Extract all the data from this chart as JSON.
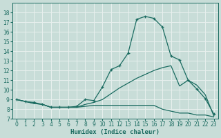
{
  "xlabel": "Humidex (Indice chaleur)",
  "xlim": [
    -0.5,
    23.5
  ],
  "ylim": [
    7,
    19
  ],
  "yticks": [
    7,
    8,
    9,
    10,
    11,
    12,
    13,
    14,
    15,
    16,
    17,
    18
  ],
  "xticks": [
    0,
    1,
    2,
    3,
    4,
    5,
    6,
    7,
    8,
    9,
    10,
    11,
    12,
    13,
    14,
    15,
    16,
    17,
    18,
    19,
    20,
    21,
    22,
    23
  ],
  "bg_color": "#c8ddd8",
  "grid_color": "#e8f0ee",
  "line_color": "#1a6b60",
  "line1_x": [
    0,
    1,
    2,
    3,
    4,
    5,
    6,
    7,
    8,
    9,
    10,
    11,
    12,
    13,
    14,
    15,
    16,
    17,
    18,
    19,
    20,
    21,
    22,
    23
  ],
  "line1_y": [
    9.0,
    8.8,
    8.7,
    8.5,
    8.2,
    8.2,
    8.2,
    8.3,
    9.0,
    8.9,
    10.3,
    12.1,
    12.5,
    13.8,
    17.3,
    17.6,
    17.4,
    16.5,
    13.5,
    13.1,
    11.0,
    10.1,
    9.1,
    7.5
  ],
  "line2_x": [
    0,
    1,
    2,
    3,
    4,
    5,
    6,
    7,
    8,
    9,
    10,
    11,
    12,
    13,
    14,
    15,
    16,
    17,
    18,
    19,
    20,
    21,
    22,
    23
  ],
  "line2_y": [
    9.0,
    8.8,
    8.6,
    8.5,
    8.2,
    8.2,
    8.2,
    8.2,
    8.5,
    8.7,
    9.0,
    9.6,
    10.2,
    10.7,
    11.2,
    11.6,
    12.0,
    12.3,
    12.5,
    10.4,
    11.0,
    10.5,
    9.5,
    7.3
  ],
  "line3_x": [
    0,
    1,
    2,
    3,
    4,
    5,
    6,
    7,
    8,
    9,
    10,
    11,
    12,
    13,
    14,
    15,
    16,
    17,
    18,
    19,
    20,
    21,
    22,
    23
  ],
  "line3_y": [
    9.0,
    8.8,
    8.6,
    8.5,
    8.2,
    8.2,
    8.2,
    8.2,
    8.3,
    8.4,
    8.4,
    8.4,
    8.4,
    8.4,
    8.4,
    8.4,
    8.4,
    8.0,
    7.8,
    7.6,
    7.6,
    7.4,
    7.4,
    7.2
  ]
}
